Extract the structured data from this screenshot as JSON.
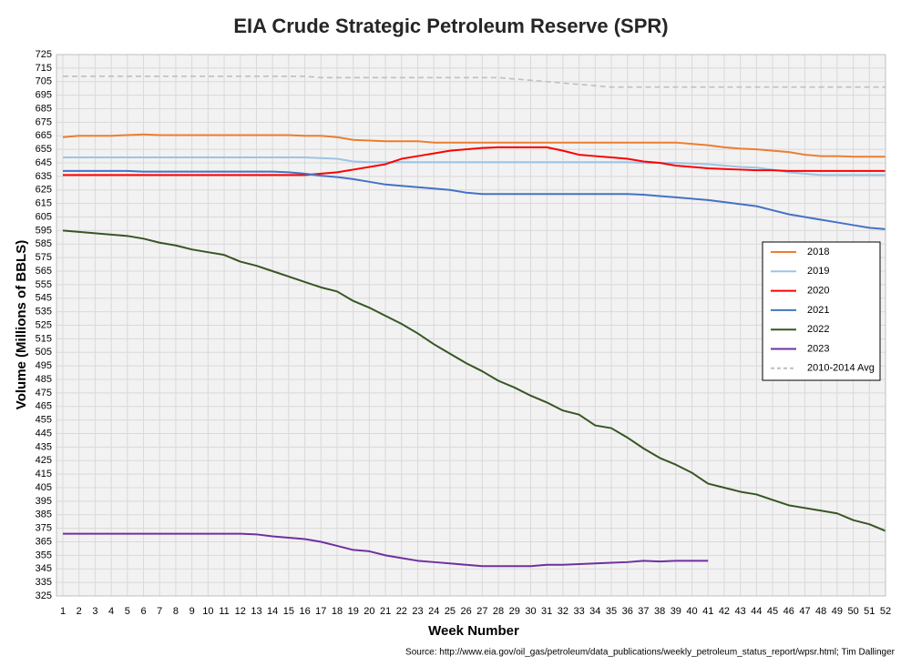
{
  "chart_data": {
    "type": "line",
    "title": "EIA Crude Strategic Petroleum Reserve (SPR)",
    "xlabel": "Week Number",
    "ylabel": "Volume (Millions of BBLS)",
    "source": "Source: http://www.eia.gov/oil_gas/petroleum/data_publications/weekly_petroleum_status_report/wpsr.html; Tim Dallinger",
    "x": [
      1,
      2,
      3,
      4,
      5,
      6,
      7,
      8,
      9,
      10,
      11,
      12,
      13,
      14,
      15,
      16,
      17,
      18,
      19,
      20,
      21,
      22,
      23,
      24,
      25,
      26,
      27,
      28,
      29,
      30,
      31,
      32,
      33,
      34,
      35,
      36,
      37,
      38,
      39,
      40,
      41,
      42,
      43,
      44,
      45,
      46,
      47,
      48,
      49,
      50,
      51,
      52
    ],
    "xlim": [
      1,
      52
    ],
    "xticks": [
      1,
      2,
      3,
      4,
      5,
      6,
      7,
      8,
      9,
      10,
      11,
      12,
      13,
      14,
      15,
      16,
      17,
      18,
      19,
      20,
      21,
      22,
      23,
      24,
      25,
      26,
      27,
      28,
      29,
      30,
      31,
      32,
      33,
      34,
      35,
      36,
      37,
      38,
      39,
      40,
      41,
      42,
      43,
      44,
      45,
      46,
      47,
      48,
      49,
      50,
      51,
      52
    ],
    "ylim": [
      325,
      725
    ],
    "yticks": [
      325,
      335,
      345,
      355,
      365,
      375,
      385,
      395,
      405,
      415,
      425,
      435,
      445,
      455,
      465,
      475,
      485,
      495,
      505,
      515,
      525,
      535,
      545,
      555,
      565,
      575,
      585,
      595,
      605,
      615,
      625,
      635,
      645,
      655,
      665,
      675,
      685,
      695,
      705,
      715,
      725
    ],
    "grid": true,
    "legend": "right",
    "series": [
      {
        "name": "2018",
        "color": "#ed7d31",
        "dash": false,
        "values": [
          664,
          665,
          665,
          665,
          665.5,
          666,
          665.5,
          665.5,
          665.5,
          665.5,
          665.5,
          665.5,
          665.5,
          665.5,
          665.5,
          665,
          665,
          664,
          662,
          661.5,
          661,
          661,
          661,
          660,
          660,
          660,
          660,
          660,
          660,
          660,
          660,
          660,
          660,
          660,
          660,
          660,
          660,
          660,
          660,
          659,
          658,
          656.5,
          655.5,
          655,
          654,
          653,
          651,
          650,
          650,
          649.5,
          649.5,
          649.5
        ]
      },
      {
        "name": "2019",
        "color": "#9dc3e6",
        "dash": false,
        "values": [
          649,
          649,
          649,
          649,
          649,
          649,
          649,
          649,
          649,
          649,
          649,
          649,
          649,
          649,
          649,
          649,
          648.5,
          648,
          646,
          645.5,
          645.5,
          645.5,
          645.5,
          645.5,
          645.5,
          645.5,
          645.5,
          645.5,
          645.5,
          645.5,
          645.5,
          645.5,
          645.5,
          645.5,
          645.5,
          645.5,
          645,
          645,
          645,
          644.5,
          644,
          643,
          642,
          641.5,
          640,
          638,
          637,
          636,
          636,
          636,
          636,
          636
        ]
      },
      {
        "name": "2020",
        "color": "#ff0000",
        "dash": false,
        "values": [
          636,
          636,
          636,
          636,
          636,
          636,
          636,
          636,
          636,
          636,
          636,
          636,
          636,
          636,
          636,
          636,
          637,
          638,
          640,
          642,
          644,
          648,
          650,
          652,
          654,
          655,
          656,
          656.5,
          656.5,
          656.5,
          656.5,
          654,
          651,
          650,
          649,
          648,
          646,
          645,
          643,
          642,
          641,
          640.5,
          640,
          639.5,
          639.5,
          639,
          639,
          639,
          639,
          639,
          639,
          639
        ]
      },
      {
        "name": "2021",
        "color": "#4472c4",
        "dash": false,
        "values": [
          639,
          639,
          639,
          639,
          639,
          638.5,
          638.5,
          638.5,
          638.5,
          638.5,
          638.5,
          638.5,
          638.5,
          638.5,
          638,
          637,
          635.5,
          634.5,
          633,
          631,
          629,
          628,
          627,
          626,
          625,
          623,
          622,
          622,
          622,
          622,
          622,
          622,
          622,
          622,
          622,
          622,
          621.5,
          620.5,
          619.5,
          618.5,
          617.5,
          616,
          614.5,
          613,
          610,
          607,
          605,
          603,
          601,
          599,
          597,
          596
        ]
      },
      {
        "name": "2022",
        "color": "#375623",
        "dash": false,
        "values": [
          595,
          594,
          593,
          592,
          591,
          589,
          586,
          584,
          581,
          579,
          577,
          572,
          569,
          565,
          561,
          557,
          553,
          550,
          543,
          538,
          532,
          526,
          519,
          511,
          504,
          497,
          491,
          484,
          479,
          473,
          468,
          462,
          459,
          451,
          449,
          442,
          434,
          427,
          422,
          416,
          408,
          405,
          402,
          400,
          396,
          392,
          390,
          388,
          386,
          381,
          378,
          373
        ]
      },
      {
        "name": "2023",
        "color": "#7030a0",
        "dash": false,
        "values": [
          371,
          371,
          371,
          371,
          371,
          371,
          371,
          371,
          371,
          371,
          371,
          371,
          370.5,
          369,
          368,
          367,
          365,
          362,
          359,
          358,
          355,
          353,
          351,
          350,
          349,
          348,
          347,
          347,
          347,
          347,
          348,
          348,
          348.5,
          349,
          349.5,
          350,
          351,
          350.5,
          351,
          351,
          351,
          null,
          null,
          null,
          null,
          null,
          null,
          null,
          null,
          null,
          null,
          null
        ]
      },
      {
        "name": "2010-2014 Avg",
        "color": "#bfbfbf",
        "dash": true,
        "values": [
          709,
          709,
          709,
          709,
          709,
          709,
          709,
          709,
          709,
          709,
          709,
          709,
          709,
          709,
          709,
          709,
          708,
          708,
          708,
          708,
          708,
          708,
          708,
          708,
          708,
          708,
          708,
          708,
          707,
          706,
          705,
          704,
          703,
          702,
          701,
          701,
          701,
          701,
          701,
          701,
          701,
          701,
          701,
          701,
          701,
          701,
          701,
          701,
          701,
          701,
          701,
          701
        ]
      }
    ]
  }
}
